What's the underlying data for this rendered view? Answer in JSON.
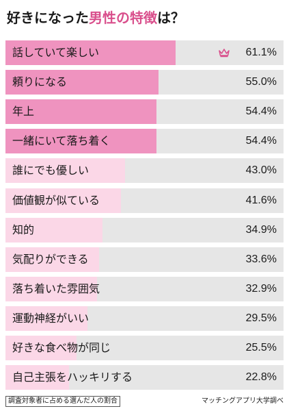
{
  "title": {
    "main": "好きになった",
    "accent": "男性の特徴",
    "tail": "は？"
  },
  "chart_data": {
    "type": "bar",
    "orientation": "horizontal",
    "unit": "%",
    "xlim": [
      0,
      100
    ],
    "categories": [
      "話していて楽しい",
      "頼りになる",
      "年上",
      "一緒にいて落ち着く",
      "誰にでも優しい",
      "価値観が似ている",
      "知的",
      "気配りができる",
      "落ち着いた雰囲気",
      "運動神経がいい",
      "好きな食べ物が同じ",
      "自己主張をハッキリする"
    ],
    "values": [
      61.1,
      55.0,
      54.4,
      54.4,
      43.0,
      41.6,
      34.9,
      33.6,
      32.9,
      29.5,
      25.5,
      22.8
    ],
    "value_labels": [
      "61.1%",
      "55.0%",
      "54.4%",
      "54.4%",
      "43.0%",
      "41.6%",
      "34.9%",
      "33.6%",
      "32.9%",
      "29.5%",
      "25.5%",
      "22.8%"
    ],
    "top_marker_icon": "crown-icon",
    "colors": {
      "top": "#ef93bf",
      "rest": "#fbd7e7",
      "track": "#e6e6e6",
      "accent": "#d94f8c"
    }
  },
  "footer": {
    "note": "調査対象者に占める選んだ人の割合",
    "source": "マッチングアプリ大学調べ"
  }
}
